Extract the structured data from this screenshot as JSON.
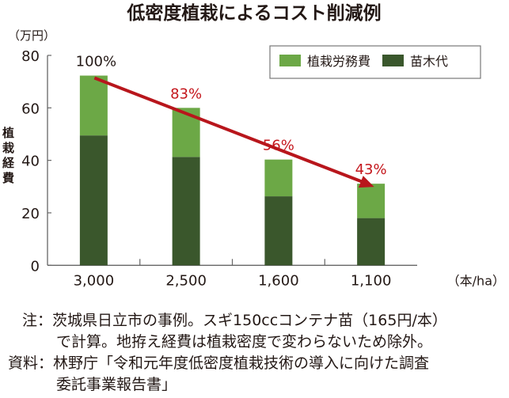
{
  "chart_data": {
    "type": "bar",
    "stacked": true,
    "title": "低密度植栽によるコスト削減例",
    "ylabel": "植栽経費",
    "yunit": "（万円）",
    "xunit": "（本/ha）",
    "ylim": [
      0,
      80
    ],
    "yticks": [
      0,
      20,
      40,
      60,
      80
    ],
    "categories": [
      "3,000",
      "2,500",
      "1,600",
      "1,100"
    ],
    "series": [
      {
        "name": "苗木代",
        "color": "#3a572c",
        "values": [
          49.5,
          41.3,
          26.3,
          18.0
        ]
      },
      {
        "name": "植栽労務費",
        "color": "#6ca846",
        "values": [
          22.8,
          18.7,
          14.0,
          13.1
        ]
      }
    ],
    "percent_labels": [
      "100%",
      "83%",
      "56%",
      "43%"
    ],
    "percent_colors": [
      "#231815",
      "#c4161c",
      "#c4161c",
      "#c4161c"
    ],
    "arrow_color": "#b8161c",
    "grid": false,
    "legend_position": "top-right"
  },
  "notes": {
    "note_label": "注：",
    "note_line1": "茨城県日立市の事例。スギ150ccコンテナ苗（165円/本）",
    "note_line2": "で計算。地拵え経費は植栽密度で変わらないため除外。",
    "source_label": "資料：",
    "source_line1": "林野庁「令和元年度低密度植栽技術の導入に向けた調査",
    "source_line2": "委託事業報告書」"
  }
}
